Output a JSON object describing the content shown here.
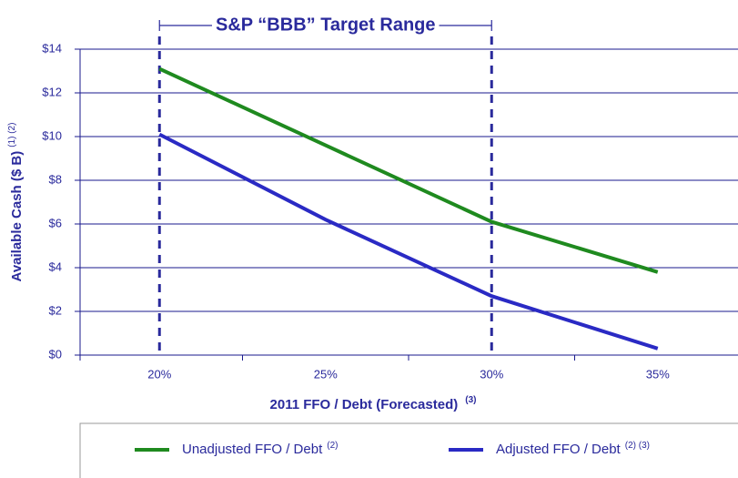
{
  "chart_data": {
    "type": "line",
    "title": "S&P “BBB” Target Range",
    "target_range": [
      "20%",
      "30%"
    ],
    "y_label": "Available Cash ($ B)",
    "y_label_note": "(1) (2)",
    "x_label": "2011 FFO / Debt (Forecasted)",
    "x_label_note": "(3)",
    "categories": [
      "20%",
      "25%",
      "30%",
      "35%"
    ],
    "series": [
      {
        "name": "Unadjusted FFO / Debt",
        "name_note": "(2)",
        "color": "#1f8a1f",
        "values": [
          13.1,
          9.6,
          6.1,
          3.8
        ]
      },
      {
        "name": "Adjusted FFO / Debt",
        "name_note": "(2) (3)",
        "color": "#2a2ac4",
        "values": [
          10.1,
          6.2,
          2.7,
          0.3
        ]
      }
    ],
    "ylim": [
      0,
      14
    ],
    "yticks": [
      {
        "value": 0,
        "label": "$0"
      },
      {
        "value": 2,
        "label": "$2"
      },
      {
        "value": 4,
        "label": "$4"
      },
      {
        "value": 6,
        "label": "$6"
      },
      {
        "value": 8,
        "label": "$8"
      },
      {
        "value": 10,
        "label": "$10"
      },
      {
        "value": 12,
        "label": "$12"
      },
      {
        "value": 14,
        "label": "$14"
      }
    ],
    "grid": true
  }
}
